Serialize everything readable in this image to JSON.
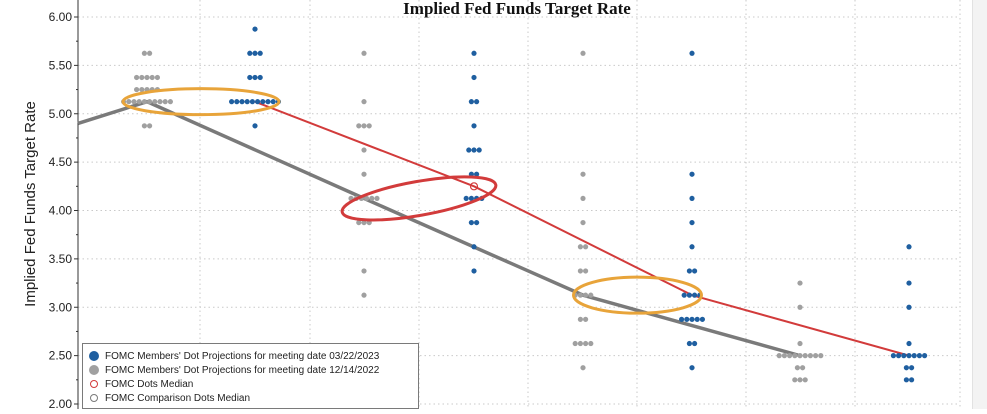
{
  "chart_data": {
    "type": "scatter",
    "title": "Implied Fed Funds Target Rate",
    "ylabel": "Implied Fed Funds Target Rate",
    "xlabel": "",
    "ylim": [
      2.0,
      6.0
    ],
    "yticks": [
      "6.00",
      "5.50",
      "5.00",
      "4.50",
      "4.00",
      "3.50",
      "3.00",
      "2.50",
      "2.00"
    ],
    "grid": true,
    "legend_position": "bottom-left",
    "colors": {
      "blue_dots": "#1f5fa0",
      "grey_dots": "#a0a0a0",
      "median_line": "#d23b3b",
      "comparison_line": "#7a7a7a",
      "highlight_orange": "#e8a43a",
      "highlight_red": "#d23b3b"
    },
    "series": [
      {
        "name": "FOMC Members' Dot Projections for meeting date 03/22/2023",
        "type": "dots",
        "points": [
          {
            "group": 2,
            "y": 5.875,
            "n": 1
          },
          {
            "group": 2,
            "y": 5.625,
            "n": 3
          },
          {
            "group": 2,
            "y": 5.375,
            "n": 3
          },
          {
            "group": 2,
            "y": 5.125,
            "n": 10
          },
          {
            "group": 2,
            "y": 4.875,
            "n": 1
          },
          {
            "group": 4,
            "y": 5.625,
            "n": 1
          },
          {
            "group": 4,
            "y": 5.375,
            "n": 1
          },
          {
            "group": 4,
            "y": 5.125,
            "n": 2
          },
          {
            "group": 4,
            "y": 4.875,
            "n": 1
          },
          {
            "group": 4,
            "y": 4.625,
            "n": 3
          },
          {
            "group": 4,
            "y": 4.375,
            "n": 2
          },
          {
            "group": 4,
            "y": 4.125,
            "n": 4
          },
          {
            "group": 4,
            "y": 3.875,
            "n": 2
          },
          {
            "group": 4,
            "y": 3.625,
            "n": 1
          },
          {
            "group": 4,
            "y": 3.375,
            "n": 1
          },
          {
            "group": 6,
            "y": 5.625,
            "n": 1
          },
          {
            "group": 6,
            "y": 4.375,
            "n": 1
          },
          {
            "group": 6,
            "y": 4.125,
            "n": 1
          },
          {
            "group": 6,
            "y": 3.875,
            "n": 1
          },
          {
            "group": 6,
            "y": 3.625,
            "n": 1
          },
          {
            "group": 6,
            "y": 3.375,
            "n": 2
          },
          {
            "group": 6,
            "y": 3.125,
            "n": 4
          },
          {
            "group": 6,
            "y": 2.875,
            "n": 5
          },
          {
            "group": 6,
            "y": 2.625,
            "n": 2
          },
          {
            "group": 6,
            "y": 2.375,
            "n": 1
          },
          {
            "group": 8,
            "y": 3.625,
            "n": 1
          },
          {
            "group": 8,
            "y": 3.25,
            "n": 1
          },
          {
            "group": 8,
            "y": 3.0,
            "n": 1
          },
          {
            "group": 8,
            "y": 2.625,
            "n": 1
          },
          {
            "group": 8,
            "y": 2.5,
            "n": 7
          },
          {
            "group": 8,
            "y": 2.375,
            "n": 2
          },
          {
            "group": 8,
            "y": 2.25,
            "n": 2
          }
        ]
      },
      {
        "name": "FOMC Members' Dot Projections for meeting date 12/14/2022",
        "type": "dots",
        "points": [
          {
            "group": 1,
            "y": 5.625,
            "n": 2
          },
          {
            "group": 1,
            "y": 5.375,
            "n": 5
          },
          {
            "group": 1,
            "y": 5.25,
            "n": 5
          },
          {
            "group": 1,
            "y": 5.125,
            "n": 10
          },
          {
            "group": 1,
            "y": 4.875,
            "n": 2
          },
          {
            "group": 3,
            "y": 5.625,
            "n": 1
          },
          {
            "group": 3,
            "y": 5.125,
            "n": 1
          },
          {
            "group": 3,
            "y": 4.875,
            "n": 3
          },
          {
            "group": 3,
            "y": 4.625,
            "n": 1
          },
          {
            "group": 3,
            "y": 4.375,
            "n": 1
          },
          {
            "group": 3,
            "y": 4.125,
            "n": 6
          },
          {
            "group": 3,
            "y": 3.875,
            "n": 3
          },
          {
            "group": 3,
            "y": 3.375,
            "n": 1
          },
          {
            "group": 3,
            "y": 3.125,
            "n": 1
          },
          {
            "group": 5,
            "y": 5.625,
            "n": 1
          },
          {
            "group": 5,
            "y": 4.375,
            "n": 1
          },
          {
            "group": 5,
            "y": 4.125,
            "n": 1
          },
          {
            "group": 5,
            "y": 3.875,
            "n": 1
          },
          {
            "group": 5,
            "y": 3.625,
            "n": 2
          },
          {
            "group": 5,
            "y": 3.375,
            "n": 2
          },
          {
            "group": 5,
            "y": 3.125,
            "n": 4
          },
          {
            "group": 5,
            "y": 2.875,
            "n": 2
          },
          {
            "group": 5,
            "y": 2.625,
            "n": 4
          },
          {
            "group": 5,
            "y": 2.375,
            "n": 1
          },
          {
            "group": 7,
            "y": 3.25,
            "n": 1
          },
          {
            "group": 7,
            "y": 3.0,
            "n": 1
          },
          {
            "group": 7,
            "y": 2.625,
            "n": 1
          },
          {
            "group": 7,
            "y": 2.5,
            "n": 9
          },
          {
            "group": 7,
            "y": 2.375,
            "n": 2
          },
          {
            "group": 7,
            "y": 2.25,
            "n": 3
          }
        ]
      },
      {
        "name": "FOMC Dots Median",
        "type": "line",
        "points": [
          {
            "group": 2,
            "y": 5.125
          },
          {
            "group": 4,
            "y": 4.25
          },
          {
            "group": 6,
            "y": 3.125
          },
          {
            "group": 8,
            "y": 2.5
          }
        ]
      },
      {
        "name": "FOMC Comparison Dots Median",
        "type": "line",
        "points": [
          {
            "group": 0,
            "y": 4.9
          },
          {
            "group": 1,
            "y": 5.125
          },
          {
            "group": 3,
            "y": 4.125
          },
          {
            "group": 5,
            "y": 3.125
          },
          {
            "group": 7,
            "y": 2.5
          }
        ]
      }
    ]
  }
}
